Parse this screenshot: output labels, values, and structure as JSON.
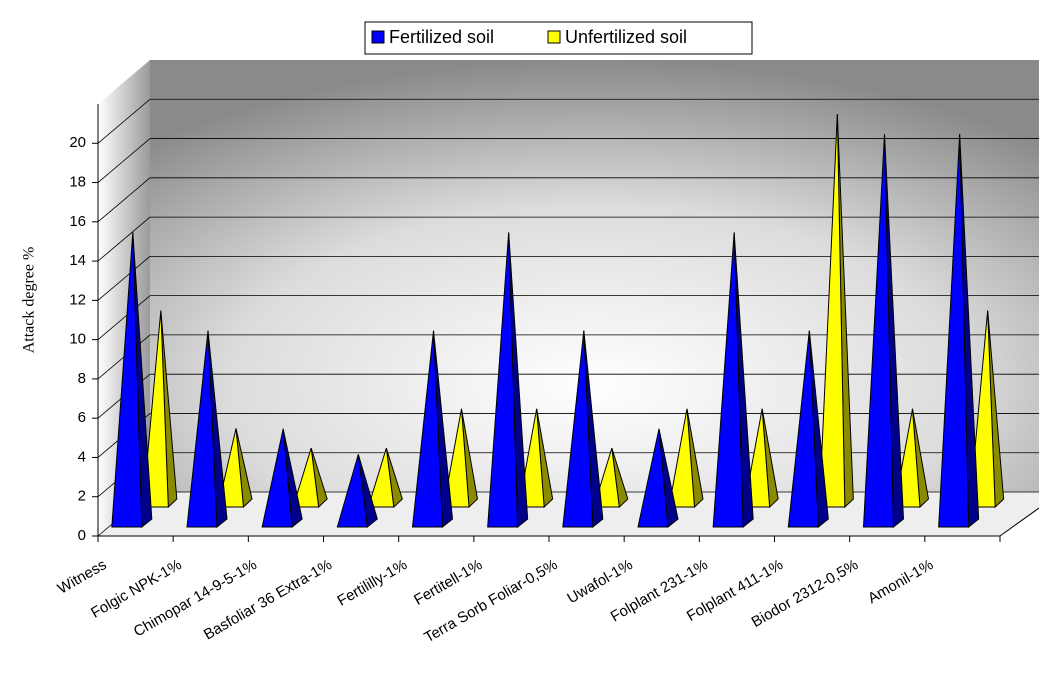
{
  "chart_data": {
    "type": "pyramid3d",
    "y_label": "Attack degree %",
    "categories": [
      "Witness",
      "Folgic NPK-1%",
      "Chimopar 14-9-5-1%",
      "Basfoliar 36 Extra-1%",
      "Fertililly-1%",
      "Fertitell-1%",
      "Terra Sorb Foliar-0,5%",
      "Uwafol-1%",
      "Folplant 231-1%",
      "Folplant 411-1%",
      "Biodor 2312-0,5%",
      "Amonil-1%"
    ],
    "series": [
      {
        "name": "Fertilized soil",
        "color": "#0000ff",
        "values": [
          15,
          10,
          5,
          3.7,
          10,
          15,
          10,
          5,
          15,
          10,
          20,
          20
        ]
      },
      {
        "name": "Unfertilized soil",
        "color": "#ffff00",
        "values": [
          10,
          4,
          3,
          3,
          5,
          5,
          3,
          5,
          5,
          20,
          5,
          10
        ]
      }
    ],
    "ylim": [
      0,
      22
    ],
    "yticks": [
      0,
      2,
      4,
      6,
      8,
      10,
      12,
      14,
      16,
      18,
      20
    ],
    "grid": true
  }
}
